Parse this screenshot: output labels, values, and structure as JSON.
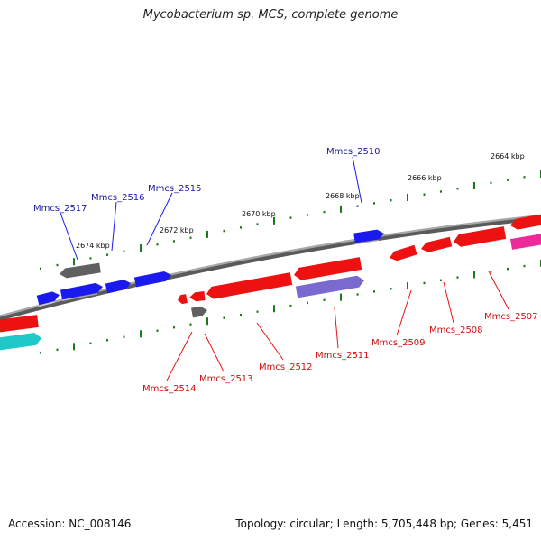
{
  "title": "Mycobacterium sp. MCS, complete genome",
  "footer": {
    "accession": "Accession: NC_008146",
    "info": "Topology: circular; Length: 5,705,448 bp; Genes: 5,451"
  },
  "colors": {
    "backbone": "#808080",
    "ticks": "#1a7a1a",
    "forward_strand": "#1a1aee",
    "reverse_strand": "#ee1111",
    "pseudo": "#606060",
    "rna": "#7a6ad0",
    "other_a": "#20c8c8",
    "other_b": "#ee2a9a"
  },
  "scale_labels": [
    {
      "label": "2674 kbp"
    },
    {
      "label": "2672 kbp"
    },
    {
      "label": "2670 kbp"
    },
    {
      "label": "2668 kbp"
    },
    {
      "label": "2666 kbp"
    },
    {
      "label": "2664 kbp"
    }
  ],
  "gene_labels": {
    "forward": [
      "Mmcs_2517",
      "Mmcs_2516",
      "Mmcs_2515",
      "Mmcs_2510"
    ],
    "reverse": [
      "Mmcs_2514",
      "Mmcs_2513",
      "Mmcs_2512",
      "Mmcs_2511",
      "Mmcs_2509",
      "Mmcs_2508",
      "Mmcs_2507"
    ]
  }
}
